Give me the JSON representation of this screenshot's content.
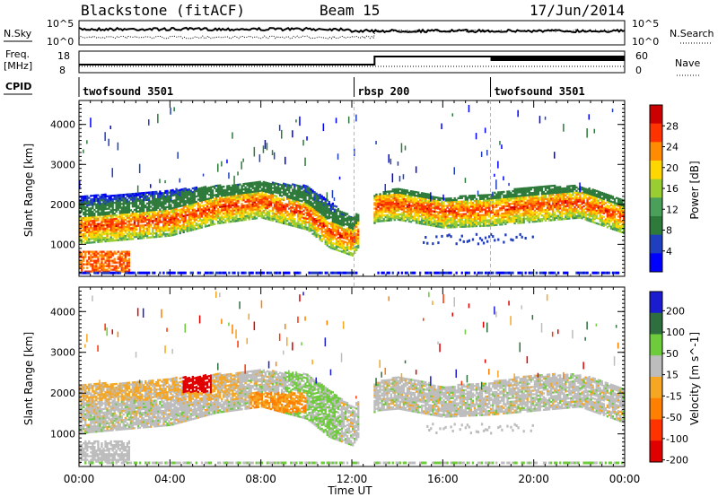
{
  "header": {
    "title": "Blackstone (fitACF)",
    "beam": "Beam 15",
    "date": "17/Jun/2014"
  },
  "noise_panel": {
    "left_label": "N.Sky",
    "right_label": "N.Search",
    "left_tick_top": "10^5",
    "left_tick_bottom": "10^0",
    "right_tick_top": "10^5",
    "right_tick_bottom": "10^0"
  },
  "freq_panel": {
    "left_label_1": "Freq.",
    "left_label_2": "[MHz]",
    "right_label": "Nave",
    "left_ticks": [
      "18",
      "8"
    ],
    "right_ticks": [
      "60",
      "0"
    ]
  },
  "cpid": {
    "label": "CPID",
    "segments": [
      {
        "name": "twofsound 3501",
        "start_hour": 0,
        "end_hour": 12.1
      },
      {
        "name": "rbsp 200",
        "start_hour": 12.1,
        "end_hour": 18.1
      },
      {
        "name": "twofsound 3501",
        "start_hour": 18.1,
        "end_hour": 24
      }
    ]
  },
  "xaxis": {
    "label": "Time UT",
    "ticks": [
      "00:00",
      "04:00",
      "08:00",
      "12:00",
      "16:00",
      "20:00",
      "00:00"
    ]
  },
  "colors": {
    "power_scale": [
      "#0000ff",
      "#1f3fbf",
      "#2e7a3a",
      "#4aa05a",
      "#9acd32",
      "#ffd700",
      "#ff8c00",
      "#ff3300",
      "#cc0000"
    ],
    "velocity_scale": [
      "#1b1bcf",
      "#2f6f3f",
      "#6ecb3c",
      "#bdbdbd",
      "#f5a623",
      "#ff7f00",
      "#ff3300",
      "#e00000"
    ]
  },
  "chart_data": [
    {
      "type": "heatmap",
      "ylabel": "Slant Range [km]",
      "ylim": [
        200,
        4600
      ],
      "yticks": [
        "1000",
        "2000",
        "3000",
        "4000"
      ],
      "colorbar_label": "Power [dB]",
      "colorbar_ticks": [
        "4",
        "8",
        "12",
        "16",
        "20",
        "24",
        "28"
      ],
      "band_upper_km": [
        [
          0,
          2200
        ],
        [
          2,
          2250
        ],
        [
          4,
          2350
        ],
        [
          6,
          2450
        ],
        [
          8,
          2550
        ],
        [
          10,
          2450
        ],
        [
          12,
          1650
        ],
        [
          13,
          2250
        ],
        [
          14,
          2400
        ],
        [
          16,
          2150
        ],
        [
          18,
          2250
        ],
        [
          20,
          2450
        ],
        [
          22,
          2450
        ],
        [
          24,
          2100
        ]
      ],
      "band_center_km": [
        [
          0,
          1400
        ],
        [
          2,
          1500
        ],
        [
          4,
          1600
        ],
        [
          6,
          1900
        ],
        [
          8,
          2050
        ],
        [
          10,
          1750
        ],
        [
          11,
          1300
        ],
        [
          12,
          1100
        ],
        [
          13,
          1950
        ],
        [
          14,
          2000
        ],
        [
          16,
          1800
        ],
        [
          18,
          1850
        ],
        [
          20,
          1950
        ],
        [
          22,
          2050
        ],
        [
          24,
          1650
        ]
      ]
    },
    {
      "type": "heatmap",
      "ylabel": "Slant Range [km]",
      "ylim": [
        200,
        4600
      ],
      "yticks": [
        "1000",
        "2000",
        "3000",
        "4000"
      ],
      "colorbar_label": "Velocity [m s^-1]",
      "colorbar_ticks": [
        "200",
        "100",
        "50",
        "15",
        "-15",
        "-50",
        "-100",
        "-200"
      ]
    }
  ]
}
